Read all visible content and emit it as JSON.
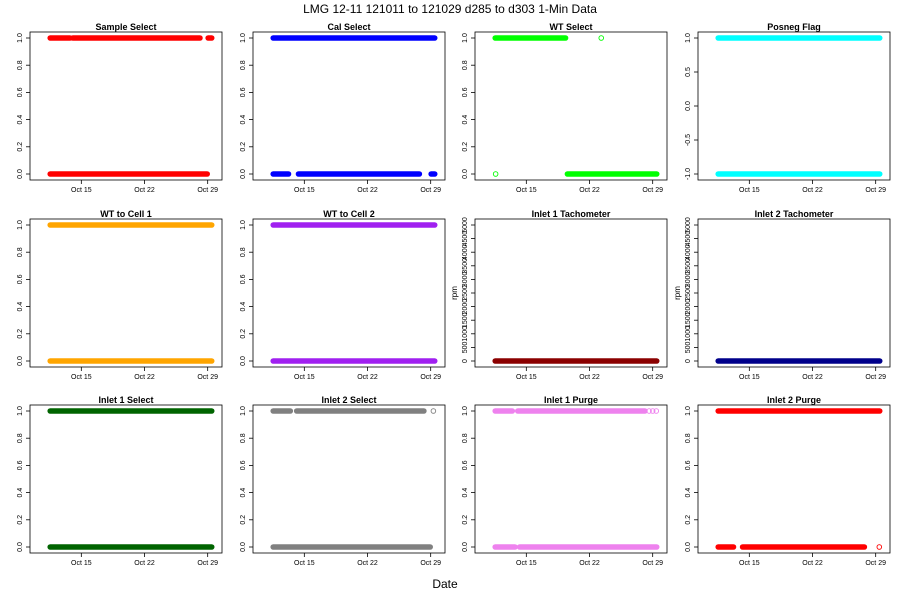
{
  "figure": {
    "title": "LMG   12-11    121011 to 121029    d285 to d303   1-Min Data",
    "xlabel": "Date"
  },
  "chart_data": [
    {
      "type": "scatter",
      "title": "Sample Select",
      "color": "#ff0000",
      "ylabel": "",
      "xlim": [
        10.2,
        29.7
      ],
      "ylim": [
        0,
        1
      ],
      "yticks": [
        0,
        0.2,
        0.4,
        0.6,
        0.8,
        1
      ],
      "ytick_labels": [
        "0.0",
        "0.2",
        "0.4",
        "0.6",
        "0.8",
        "1.0"
      ],
      "xticks": [
        15,
        22,
        29
      ],
      "xtick_labels": [
        "Oct 15",
        "Oct 22",
        "Oct 29"
      ],
      "segments": [
        {
          "y": 1,
          "x_start": 11.5,
          "x_end": 13.8
        },
        {
          "y": 1,
          "x_start": 14.0,
          "x_end": 28.2
        },
        {
          "y": 1,
          "x_start": 29.0,
          "x_end": 29.5
        },
        {
          "y": 0,
          "x_start": 11.5,
          "x_end": 29.0
        }
      ],
      "outliers": []
    },
    {
      "type": "scatter",
      "title": "Cal Select",
      "color": "#0000ff",
      "ylabel": "",
      "xlim": [
        10.2,
        29.7
      ],
      "ylim": [
        0,
        1
      ],
      "yticks": [
        0,
        0.2,
        0.4,
        0.6,
        0.8,
        1
      ],
      "ytick_labels": [
        "0.0",
        "0.2",
        "0.4",
        "0.6",
        "0.8",
        "1.0"
      ],
      "xticks": [
        15,
        22,
        29
      ],
      "xtick_labels": [
        "Oct 15",
        "Oct 22",
        "Oct 29"
      ],
      "segments": [
        {
          "y": 1,
          "x_start": 11.5,
          "x_end": 29.5
        },
        {
          "y": 0,
          "x_start": 11.5,
          "x_end": 13.3
        },
        {
          "y": 0,
          "x_start": 14.3,
          "x_end": 27.8
        },
        {
          "y": 0,
          "x_start": 29.0,
          "x_end": 29.5
        }
      ],
      "outliers": []
    },
    {
      "type": "scatter",
      "title": "WT Select",
      "color": "#00ff00",
      "ylabel": "",
      "xlim": [
        10.2,
        29.7
      ],
      "ylim": [
        0,
        1
      ],
      "yticks": [
        0,
        0.2,
        0.4,
        0.6,
        0.8,
        1
      ],
      "ytick_labels": [
        "0.0",
        "0.2",
        "0.4",
        "0.6",
        "0.8",
        "1.0"
      ],
      "xticks": [
        15,
        22,
        29
      ],
      "xtick_labels": [
        "Oct 15",
        "Oct 22",
        "Oct 29"
      ],
      "segments": [
        {
          "y": 1,
          "x_start": 11.5,
          "x_end": 19.4
        },
        {
          "y": 0,
          "x_start": 19.5,
          "x_end": 29.5
        }
      ],
      "outliers": [
        {
          "x": 11.6,
          "y": 0
        },
        {
          "x": 23.3,
          "y": 1
        }
      ]
    },
    {
      "type": "scatter",
      "title": "Posneg Flag",
      "color": "#00ffff",
      "ylabel": "",
      "xlim": [
        10.2,
        29.7
      ],
      "ylim": [
        -1,
        1
      ],
      "yticks": [
        -1,
        -0.5,
        0,
        0.5,
        1
      ],
      "ytick_labels": [
        "-1.0",
        "-0.5",
        "0.0",
        "0.5",
        "1.0"
      ],
      "xticks": [
        15,
        22,
        29
      ],
      "xtick_labels": [
        "Oct 15",
        "Oct 22",
        "Oct 29"
      ],
      "segments": [
        {
          "y": 1,
          "x_start": 11.5,
          "x_end": 29.5
        },
        {
          "y": -1,
          "x_start": 11.5,
          "x_end": 29.5
        }
      ],
      "outliers": []
    },
    {
      "type": "scatter",
      "title": "WT to Cell 1",
      "color": "#ffa500",
      "ylabel": "",
      "xlim": [
        10.2,
        29.7
      ],
      "ylim": [
        0,
        1
      ],
      "yticks": [
        0,
        0.2,
        0.4,
        0.6,
        0.8,
        1
      ],
      "ytick_labels": [
        "0.0",
        "0.2",
        "0.4",
        "0.6",
        "0.8",
        "1.0"
      ],
      "xticks": [
        15,
        22,
        29
      ],
      "xtick_labels": [
        "Oct 15",
        "Oct 22",
        "Oct 29"
      ],
      "segments": [
        {
          "y": 1,
          "x_start": 11.5,
          "x_end": 29.5
        },
        {
          "y": 0,
          "x_start": 11.5,
          "x_end": 29.5
        }
      ],
      "outliers": []
    },
    {
      "type": "scatter",
      "title": "WT to Cell 2",
      "color": "#a020f0",
      "ylabel": "",
      "xlim": [
        10.2,
        29.7
      ],
      "ylim": [
        0,
        1
      ],
      "yticks": [
        0,
        0.2,
        0.4,
        0.6,
        0.8,
        1
      ],
      "ytick_labels": [
        "0.0",
        "0.2",
        "0.4",
        "0.6",
        "0.8",
        "1.0"
      ],
      "xticks": [
        15,
        22,
        29
      ],
      "xtick_labels": [
        "Oct 15",
        "Oct 22",
        "Oct 29"
      ],
      "segments": [
        {
          "y": 1,
          "x_start": 11.5,
          "x_end": 29.5
        },
        {
          "y": 0,
          "x_start": 11.5,
          "x_end": 29.5
        }
      ],
      "outliers": []
    },
    {
      "type": "scatter",
      "title": "Inlet 1 Tachometer",
      "color": "#8b0000",
      "ylabel": "rpm",
      "xlim": [
        10.2,
        29.7
      ],
      "ylim": [
        0,
        5000
      ],
      "yticks": [
        0,
        500,
        1000,
        1500,
        2000,
        2500,
        3000,
        3500,
        4000,
        4500,
        5000
      ],
      "ytick_labels": [
        "0",
        "500",
        "1000",
        "1500",
        "2000",
        "2500",
        "3000",
        "3500",
        "4000",
        "4500",
        "5000"
      ],
      "xticks": [
        15,
        22,
        29
      ],
      "xtick_labels": [
        "Oct 15",
        "Oct 22",
        "Oct 29"
      ],
      "segments": [
        {
          "y": 0,
          "x_start": 11.5,
          "x_end": 29.5
        }
      ],
      "outliers": []
    },
    {
      "type": "scatter",
      "title": "Inlet 2 Tachometer",
      "color": "#00008b",
      "ylabel": "rpm",
      "xlim": [
        10.2,
        29.7
      ],
      "ylim": [
        0,
        5000
      ],
      "yticks": [
        0,
        500,
        1000,
        1500,
        2000,
        2500,
        3000,
        3500,
        4000,
        4500,
        5000
      ],
      "ytick_labels": [
        "0",
        "500",
        "1000",
        "1500",
        "2000",
        "2500",
        "3000",
        "3500",
        "4000",
        "4500",
        "5000"
      ],
      "xticks": [
        15,
        22,
        29
      ],
      "xtick_labels": [
        "Oct 15",
        "Oct 22",
        "Oct 29"
      ],
      "segments": [
        {
          "y": 0,
          "x_start": 11.5,
          "x_end": 29.5
        }
      ],
      "outliers": []
    },
    {
      "type": "scatter",
      "title": "Inlet 1 Select",
      "color": "#006400",
      "ylabel": "",
      "xlim": [
        10.2,
        29.7
      ],
      "ylim": [
        0,
        1
      ],
      "yticks": [
        0,
        0.2,
        0.4,
        0.6,
        0.8,
        1
      ],
      "ytick_labels": [
        "0.0",
        "0.2",
        "0.4",
        "0.6",
        "0.8",
        "1.0"
      ],
      "xticks": [
        15,
        22,
        29
      ],
      "xtick_labels": [
        "Oct 15",
        "Oct 22",
        "Oct 29"
      ],
      "segments": [
        {
          "y": 1,
          "x_start": 11.5,
          "x_end": 29.5
        },
        {
          "y": 0,
          "x_start": 11.5,
          "x_end": 29.5
        }
      ],
      "outliers": []
    },
    {
      "type": "scatter",
      "title": "Inlet 2 Select",
      "color": "#808080",
      "ylabel": "",
      "xlim": [
        10.2,
        29.7
      ],
      "ylim": [
        0,
        1
      ],
      "yticks": [
        0,
        0.2,
        0.4,
        0.6,
        0.8,
        1
      ],
      "ytick_labels": [
        "0.0",
        "0.2",
        "0.4",
        "0.6",
        "0.8",
        "1.0"
      ],
      "xticks": [
        15,
        22,
        29
      ],
      "xtick_labels": [
        "Oct 15",
        "Oct 22",
        "Oct 29"
      ],
      "segments": [
        {
          "y": 1,
          "x_start": 11.5,
          "x_end": 13.5
        },
        {
          "y": 1,
          "x_start": 14.1,
          "x_end": 28.3
        },
        {
          "y": 0,
          "x_start": 11.5,
          "x_end": 29.0
        }
      ],
      "outliers": [
        {
          "x": 29.3,
          "y": 1
        }
      ]
    },
    {
      "type": "scatter",
      "title": "Inlet 1 Purge",
      "color": "#ee82ee",
      "ylabel": "",
      "xlim": [
        10.2,
        29.7
      ],
      "ylim": [
        0,
        1
      ],
      "yticks": [
        0,
        0.2,
        0.4,
        0.6,
        0.8,
        1
      ],
      "ytick_labels": [
        "0.0",
        "0.2",
        "0.4",
        "0.6",
        "0.8",
        "1.0"
      ],
      "xticks": [
        15,
        22,
        29
      ],
      "xtick_labels": [
        "Oct 15",
        "Oct 22",
        "Oct 29"
      ],
      "segments": [
        {
          "y": 1,
          "x_start": 11.5,
          "x_end": 13.5
        },
        {
          "y": 1,
          "x_start": 14.0,
          "x_end": 28.2
        },
        {
          "y": 0,
          "x_start": 11.5,
          "x_end": 13.8
        },
        {
          "y": 0,
          "x_start": 14.2,
          "x_end": 29.5
        }
      ],
      "outliers": [
        {
          "x": 28.6,
          "y": 1
        },
        {
          "x": 29.0,
          "y": 1
        },
        {
          "x": 29.4,
          "y": 1
        }
      ]
    },
    {
      "type": "scatter",
      "title": "Inlet 2 Purge",
      "color": "#ff0000",
      "ylabel": "",
      "xlim": [
        10.2,
        29.7
      ],
      "ylim": [
        0,
        1
      ],
      "yticks": [
        0,
        0.2,
        0.4,
        0.6,
        0.8,
        1
      ],
      "ytick_labels": [
        "0.0",
        "0.2",
        "0.4",
        "0.6",
        "0.8",
        "1.0"
      ],
      "xticks": [
        15,
        22,
        29
      ],
      "xtick_labels": [
        "Oct 15",
        "Oct 22",
        "Oct 29"
      ],
      "segments": [
        {
          "y": 1,
          "x_start": 11.5,
          "x_end": 29.5
        },
        {
          "y": 0,
          "x_start": 11.5,
          "x_end": 13.3
        },
        {
          "y": 0,
          "x_start": 14.2,
          "x_end": 27.8
        }
      ],
      "outliers": [
        {
          "x": 29.4,
          "y": 0
        }
      ]
    }
  ]
}
